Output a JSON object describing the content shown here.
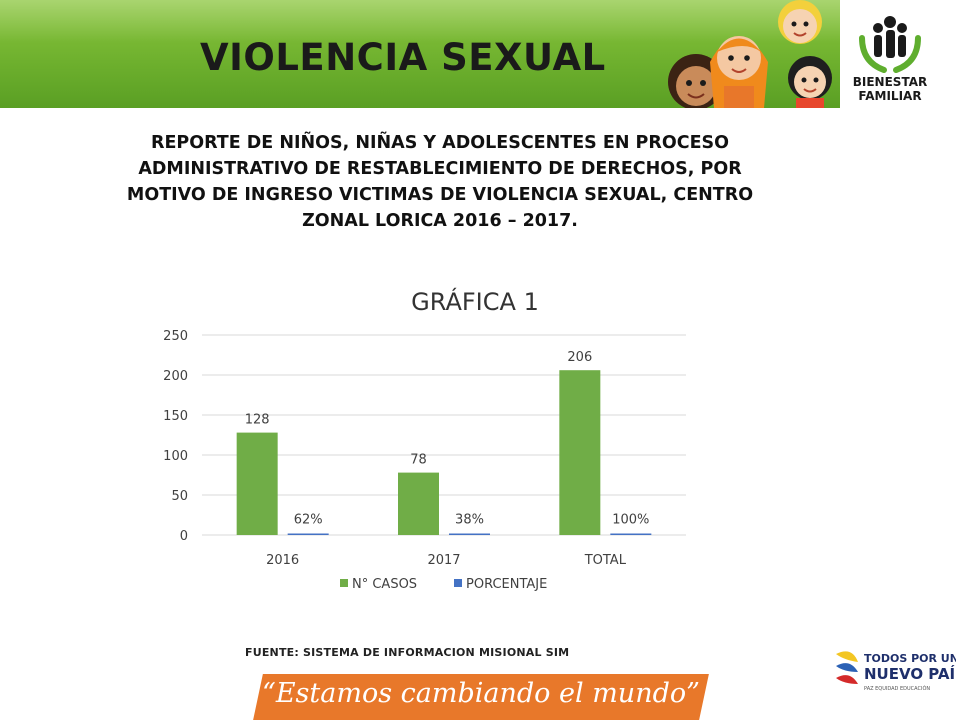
{
  "header": {
    "title": "VIOLENCIA SEXUAL",
    "logo_text_line1": "BIENESTAR",
    "logo_text_line2": "FAMILIAR"
  },
  "subtitle": {
    "line1": "REPORTE DE NIÑOS, NIÑAS Y ADOLESCENTES EN PROCESO",
    "line2": "ADMINISTRATIVO DE RESTABLECIMIENTO DE DERECHOS, POR",
    "line3": "MOTIVO DE INGRESO VICTIMAS DE VIOLENCIA SEXUAL, CENTRO",
    "line4": "ZONAL LORICA 2016 – 2017."
  },
  "chart_data": {
    "type": "bar",
    "title": "GRÁFICA 1",
    "categories": [
      "2016",
      "2017",
      "TOTAL"
    ],
    "series": [
      {
        "name": "N° CASOS",
        "values": [
          128,
          78,
          206
        ],
        "labels": [
          "128",
          "78",
          "206"
        ],
        "color": "#70ad47"
      },
      {
        "name": "PORCENTAJE",
        "values": [
          0.62,
          0.38,
          1.0
        ],
        "labels": [
          "62%",
          "38%",
          "100%"
        ],
        "color": "#4472c4"
      }
    ],
    "yticks": [
      "0",
      "50",
      "100",
      "150",
      "200",
      "250"
    ],
    "ylim": [
      0,
      250
    ],
    "grid": true,
    "legend": "bottom"
  },
  "footer": {
    "source": "FUENTE: SISTEMA DE INFORMACION MISIONAL SIM",
    "slogan": "“Estamos cambiando el mundo”",
    "gov_line1": "TODOS POR UN",
    "gov_line2": "NUEVO PAÍS",
    "gov_line3": "PAZ  EQUIDAD  EDUCACIÓN"
  }
}
